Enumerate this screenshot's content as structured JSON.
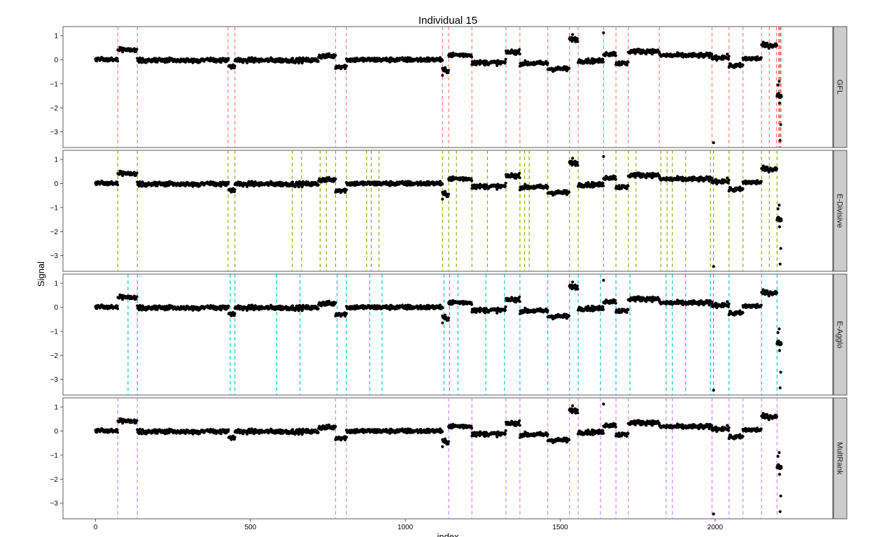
{
  "chart_data": {
    "type": "scatter",
    "title": "Individual 15",
    "xlabel": "index",
    "ylabel": "Signal",
    "xlim": [
      -105,
      2380
    ],
    "ylim": [
      -3.65,
      1.38
    ],
    "xticks": [
      0,
      500,
      1000,
      1500,
      2000
    ],
    "yticks": [
      1,
      0,
      -1,
      -2,
      -3
    ],
    "grid": false,
    "colors": {
      "points": "#000000",
      "strip_bg": "#cccccc",
      "GFL": "#f8766d",
      "E-Divisive": "#7cae00",
      "E-Agglo": "#00bfc4",
      "MultRank": "#c77cff"
    },
    "signal_segments": [
      {
        "start": 0,
        "end": 72,
        "mean": 0.02
      },
      {
        "start": 72,
        "end": 135,
        "mean": 0.42
      },
      {
        "start": 135,
        "end": 430,
        "mean": -0.02
      },
      {
        "start": 430,
        "end": 450,
        "mean": -0.3
      },
      {
        "start": 450,
        "end": 720,
        "mean": -0.02
      },
      {
        "start": 720,
        "end": 775,
        "mean": 0.15
      },
      {
        "start": 775,
        "end": 810,
        "mean": -0.28
      },
      {
        "start": 810,
        "end": 1120,
        "mean": 0.0
      },
      {
        "start": 1120,
        "end": 1140,
        "mean": -0.45
      },
      {
        "start": 1140,
        "end": 1215,
        "mean": 0.2
      },
      {
        "start": 1215,
        "end": 1325,
        "mean": -0.12
      },
      {
        "start": 1325,
        "end": 1370,
        "mean": 0.32
      },
      {
        "start": 1370,
        "end": 1460,
        "mean": -0.15
      },
      {
        "start": 1460,
        "end": 1530,
        "mean": -0.38
      },
      {
        "start": 1530,
        "end": 1558,
        "mean": 0.85
      },
      {
        "start": 1558,
        "end": 1640,
        "mean": -0.05
      },
      {
        "start": 1640,
        "end": 1680,
        "mean": 0.25
      },
      {
        "start": 1680,
        "end": 1720,
        "mean": -0.15
      },
      {
        "start": 1720,
        "end": 1820,
        "mean": 0.35
      },
      {
        "start": 1820,
        "end": 1990,
        "mean": 0.18
      },
      {
        "start": 1990,
        "end": 2045,
        "mean": 0.1
      },
      {
        "start": 2045,
        "end": 2090,
        "mean": -0.25
      },
      {
        "start": 2090,
        "end": 2150,
        "mean": 0.05
      },
      {
        "start": 2150,
        "end": 2200,
        "mean": 0.6
      },
      {
        "start": 2200,
        "end": 2215,
        "mean": -1.5
      }
    ],
    "outliers": [
      {
        "x": 1120,
        "y": -0.65
      },
      {
        "x": 1995,
        "y": -3.45
      },
      {
        "x": 1640,
        "y": 1.12
      },
      {
        "x": 1540,
        "y": 1.05
      },
      {
        "x": 2205,
        "y": -1.4
      },
      {
        "x": 2208,
        "y": -1.8
      },
      {
        "x": 2212,
        "y": -2.7
      },
      {
        "x": 2210,
        "y": -3.35
      },
      {
        "x": 2203,
        "y": -1.05
      },
      {
        "x": 2207,
        "y": -0.9
      }
    ],
    "panels": [
      {
        "label": "GFL",
        "changepoints": [
          72,
          135,
          428,
          450,
          775,
          810,
          1120,
          1140,
          1215,
          1325,
          1370,
          1460,
          1530,
          1558,
          1640,
          1680,
          1720,
          1820,
          1990,
          2045,
          2090,
          2150,
          2175,
          2198,
          2205,
          2207,
          2209,
          2211,
          2213
        ]
      },
      {
        "label": "E-Divisive",
        "changepoints": [
          72,
          135,
          428,
          450,
          635,
          665,
          725,
          745,
          775,
          810,
          875,
          890,
          915,
          1120,
          1140,
          1165,
          1215,
          1265,
          1325,
          1370,
          1385,
          1400,
          1460,
          1530,
          1558,
          1640,
          1680,
          1720,
          1745,
          1825,
          1845,
          1862,
          1905,
          1985,
          1995,
          2045,
          2090,
          2150,
          2175,
          2200
        ]
      },
      {
        "label": "E-Agglo",
        "changepoints": [
          105,
          135,
          435,
          450,
          585,
          660,
          780,
          810,
          885,
          925,
          1125,
          1143,
          1170,
          1260,
          1320,
          1370,
          1460,
          1530,
          1558,
          1630,
          1680,
          1725,
          1842,
          1862,
          1905,
          1985,
          1995,
          2045,
          2150,
          2200
        ]
      },
      {
        "label": "MultRank",
        "changepoints": [
          72,
          135,
          775,
          810,
          1140,
          1215,
          1325,
          1370,
          1460,
          1530,
          1558,
          1630,
          1680,
          1720,
          1842,
          1862,
          1990,
          2045,
          2090,
          2150,
          2200
        ]
      }
    ]
  }
}
